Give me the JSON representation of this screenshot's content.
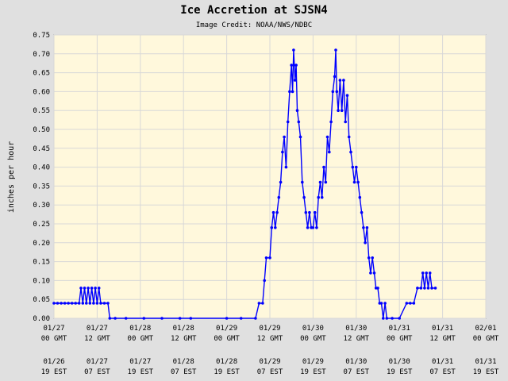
{
  "chart_data": {
    "type": "line",
    "title": "Ice Accretion at SJSN4",
    "subtitle": "Image Credit: NOAA/NWS/NDBC",
    "xlabel": "",
    "ylabel": "inches per hour",
    "ylim": [
      0,
      0.75
    ],
    "xlim": [
      0,
      120
    ],
    "x_unit": "hours after 01/27 00 GMT",
    "yticks": [
      "0.00",
      "0.05",
      "0.10",
      "0.15",
      "0.20",
      "0.25",
      "0.30",
      "0.35",
      "0.40",
      "0.45",
      "0.50",
      "0.55",
      "0.60",
      "0.65",
      "0.70",
      "0.75"
    ],
    "xticks_gmt": [
      "01/27\n00 GMT",
      "01/27\n12 GMT",
      "01/28\n00 GMT",
      "01/28\n12 GMT",
      "01/29\n00 GMT",
      "01/29\n12 GMT",
      "01/30\n00 GMT",
      "01/30\n12 GMT",
      "01/31\n00 GMT",
      "01/31\n12 GMT",
      "02/01\n00 GMT"
    ],
    "xticks_est": [
      "01/26\n19 EST",
      "01/27\n07 EST",
      "01/27\n19 EST",
      "01/28\n07 EST",
      "01/28\n19 EST",
      "01/29\n07 EST",
      "01/29\n19 EST",
      "01/30\n07 EST",
      "01/30\n19 EST",
      "01/31\n07 EST",
      "01/31\n19 EST"
    ],
    "grid": true,
    "colors": {
      "series": "#0000ff",
      "plot_bg": "#fff8dc",
      "page_bg": "#e0e0e0",
      "grid": "#d8d8d8"
    },
    "series": [
      {
        "values": [
          [
            0,
            0.04
          ],
          [
            1,
            0.04
          ],
          [
            2,
            0.04
          ],
          [
            3,
            0.04
          ],
          [
            4,
            0.04
          ],
          [
            5,
            0.04
          ],
          [
            6,
            0.04
          ],
          [
            7,
            0.04
          ],
          [
            7.5,
            0.08
          ],
          [
            8,
            0.04
          ],
          [
            8.5,
            0.08
          ],
          [
            9,
            0.04
          ],
          [
            9.5,
            0.08
          ],
          [
            10,
            0.04
          ],
          [
            10.5,
            0.08
          ],
          [
            11,
            0.04
          ],
          [
            11.5,
            0.08
          ],
          [
            12,
            0.04
          ],
          [
            12.5,
            0.08
          ],
          [
            13,
            0.04
          ],
          [
            14,
            0.04
          ],
          [
            15,
            0.04
          ],
          [
            15.5,
            0.0
          ],
          [
            17,
            0.0
          ],
          [
            20,
            0.0
          ],
          [
            25,
            0.0
          ],
          [
            30,
            0.0
          ],
          [
            35,
            0.0
          ],
          [
            38,
            0.0
          ],
          [
            48,
            0.0
          ],
          [
            52,
            0.0
          ],
          [
            56,
            0.0
          ],
          [
            57,
            0.04
          ],
          [
            58,
            0.04
          ],
          [
            58.5,
            0.1
          ],
          [
            59,
            0.16
          ],
          [
            60,
            0.16
          ],
          [
            60.5,
            0.24
          ],
          [
            61,
            0.28
          ],
          [
            61.5,
            0.24
          ],
          [
            62,
            0.28
          ],
          [
            62.5,
            0.32
          ],
          [
            63,
            0.36
          ],
          [
            63.5,
            0.44
          ],
          [
            64,
            0.48
          ],
          [
            64.5,
            0.4
          ],
          [
            65,
            0.52
          ],
          [
            65.5,
            0.6
          ],
          [
            66,
            0.67
          ],
          [
            66.3,
            0.6
          ],
          [
            66.6,
            0.71
          ],
          [
            67,
            0.63
          ],
          [
            67.3,
            0.67
          ],
          [
            67.6,
            0.55
          ],
          [
            68,
            0.52
          ],
          [
            68.5,
            0.48
          ],
          [
            69,
            0.36
          ],
          [
            69.5,
            0.32
          ],
          [
            70,
            0.28
          ],
          [
            70.5,
            0.24
          ],
          [
            71,
            0.28
          ],
          [
            71.5,
            0.24
          ],
          [
            72,
            0.24
          ],
          [
            72.5,
            0.28
          ],
          [
            73,
            0.24
          ],
          [
            73.5,
            0.32
          ],
          [
            74,
            0.36
          ],
          [
            74.5,
            0.32
          ],
          [
            75,
            0.4
          ],
          [
            75.5,
            0.36
          ],
          [
            76,
            0.48
          ],
          [
            76.5,
            0.44
          ],
          [
            77,
            0.52
          ],
          [
            77.5,
            0.6
          ],
          [
            78,
            0.64
          ],
          [
            78.3,
            0.71
          ],
          [
            78.6,
            0.6
          ],
          [
            79,
            0.55
          ],
          [
            79.5,
            0.63
          ],
          [
            80,
            0.55
          ],
          [
            80.5,
            0.63
          ],
          [
            81,
            0.52
          ],
          [
            81.5,
            0.59
          ],
          [
            82,
            0.48
          ],
          [
            82.5,
            0.44
          ],
          [
            83,
            0.4
          ],
          [
            83.5,
            0.36
          ],
          [
            84,
            0.4
          ],
          [
            84.5,
            0.36
          ],
          [
            85,
            0.32
          ],
          [
            85.5,
            0.28
          ],
          [
            86,
            0.24
          ],
          [
            86.5,
            0.2
          ],
          [
            87,
            0.24
          ],
          [
            87.5,
            0.16
          ],
          [
            88,
            0.12
          ],
          [
            88.5,
            0.16
          ],
          [
            89,
            0.12
          ],
          [
            89.5,
            0.08
          ],
          [
            90,
            0.08
          ],
          [
            90.5,
            0.04
          ],
          [
            91,
            0.04
          ],
          [
            91.5,
            0.0
          ],
          [
            92,
            0.04
          ],
          [
            92.5,
            0.0
          ],
          [
            94,
            0.0
          ],
          [
            96,
            0.0
          ],
          [
            98,
            0.04
          ],
          [
            99,
            0.04
          ],
          [
            100,
            0.04
          ],
          [
            101,
            0.08
          ],
          [
            102,
            0.08
          ],
          [
            102.5,
            0.12
          ],
          [
            103,
            0.08
          ],
          [
            103.5,
            0.12
          ],
          [
            104,
            0.08
          ],
          [
            104.5,
            0.12
          ],
          [
            105,
            0.08
          ],
          [
            106,
            0.08
          ]
        ]
      }
    ]
  }
}
